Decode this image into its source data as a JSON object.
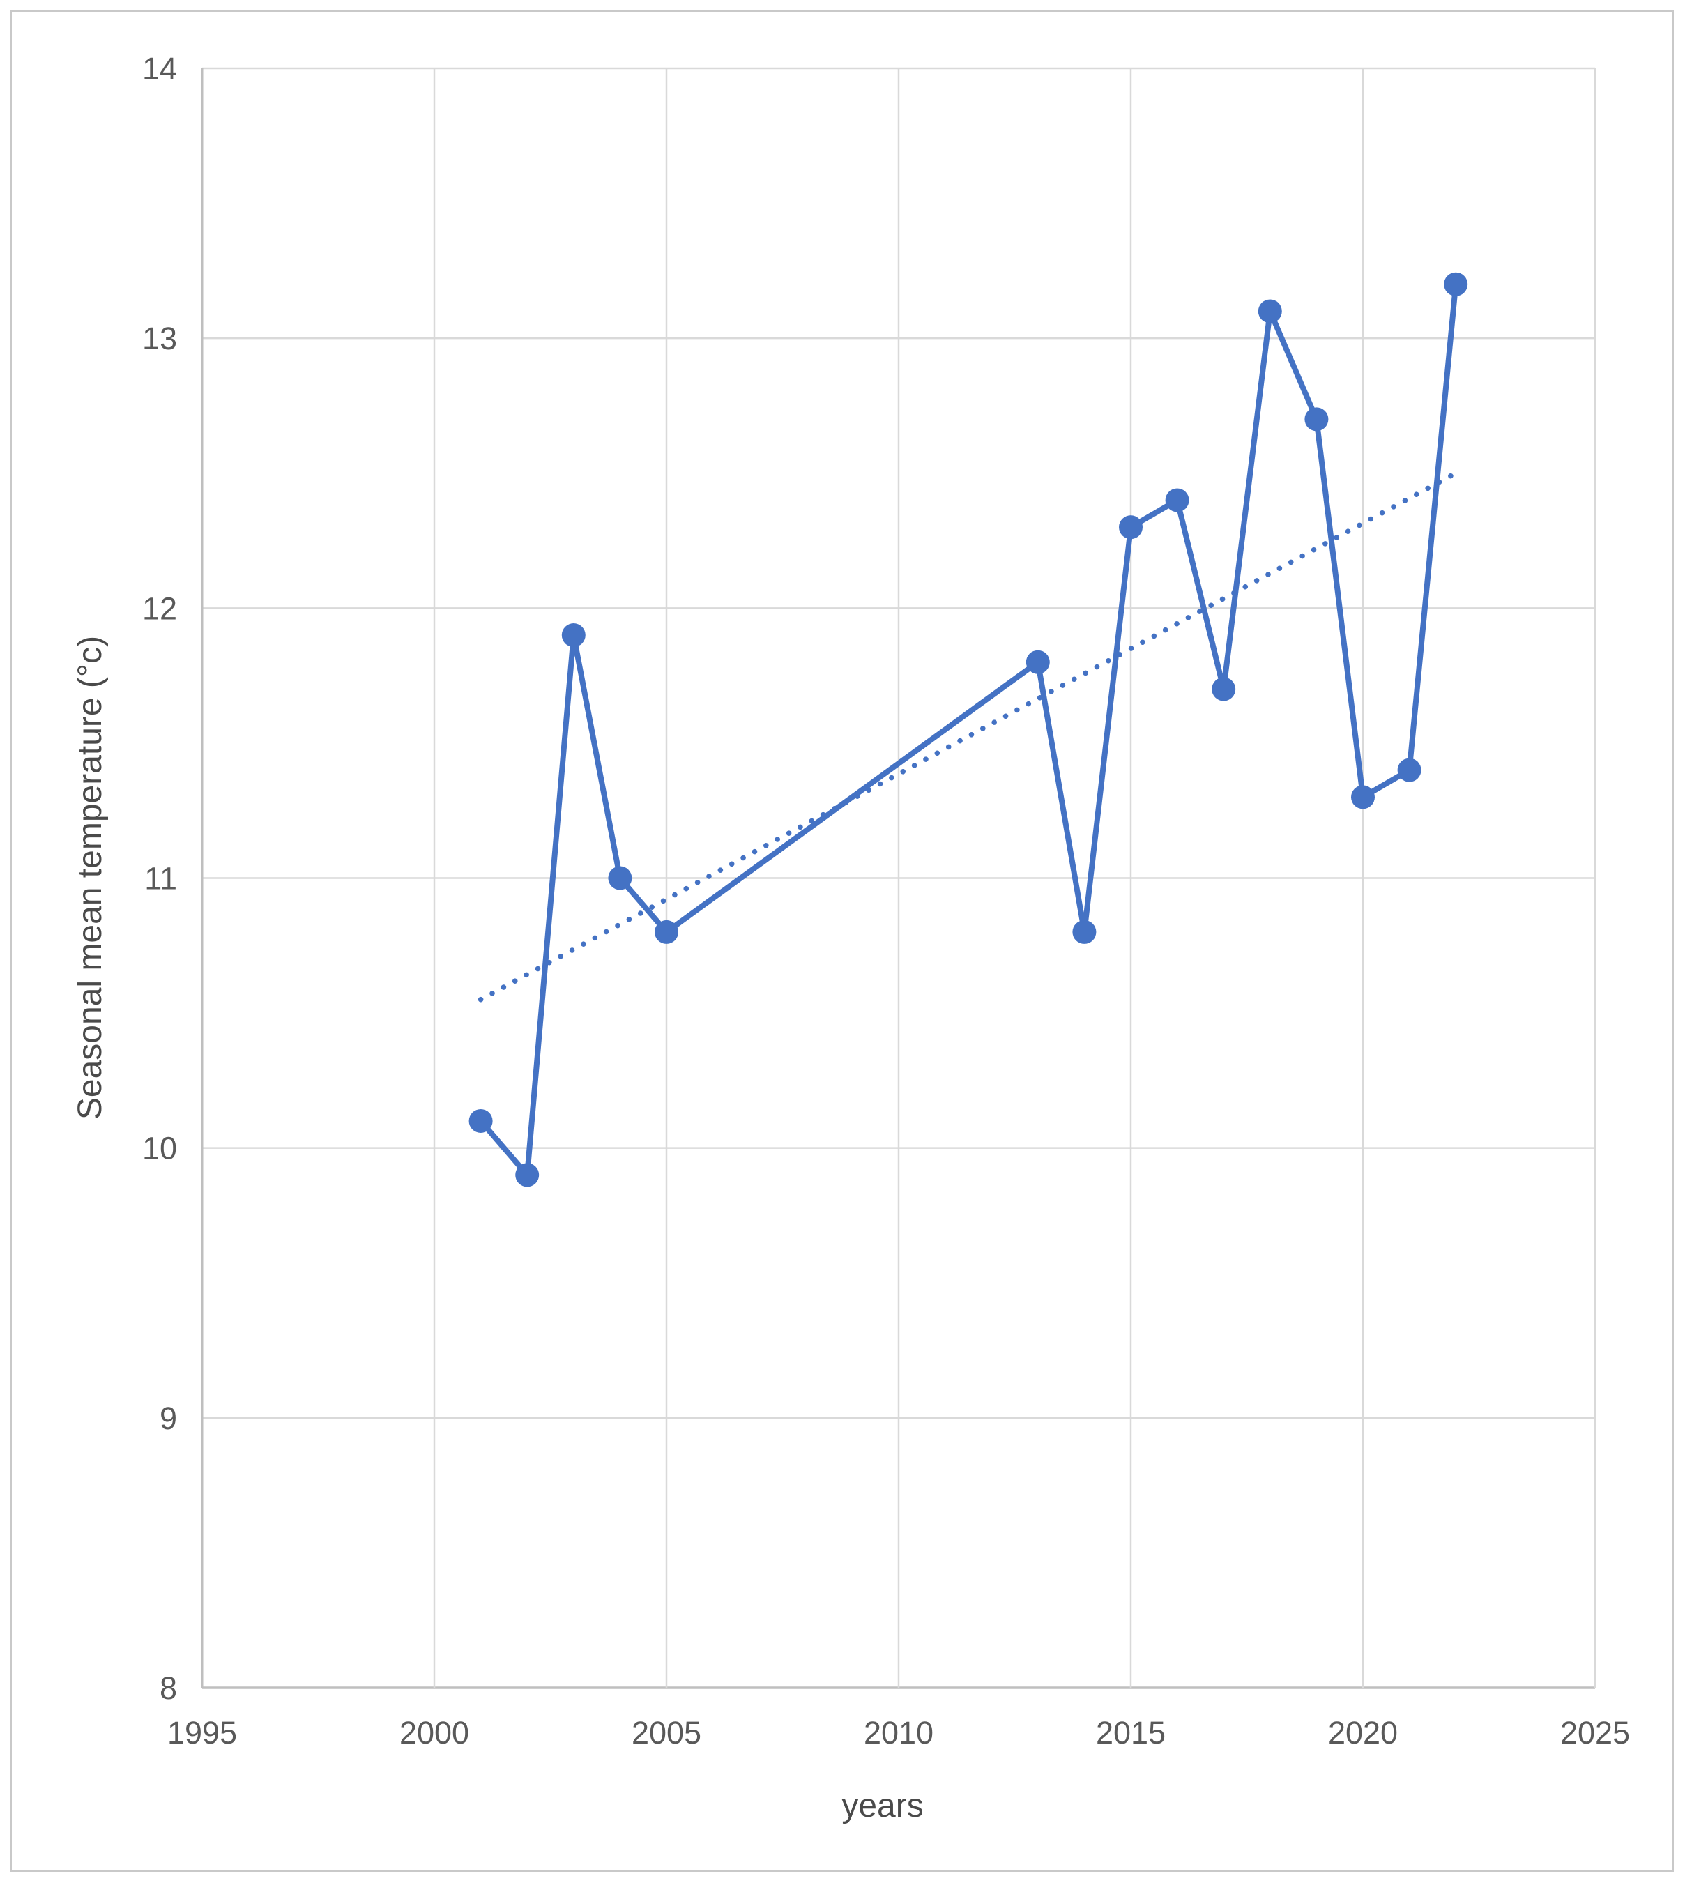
{
  "chart_data": {
    "type": "line",
    "title": "",
    "xlabel": "years",
    "ylabel": "Seasonal mean  temperature (°c)",
    "series": [
      {
        "name": "seasonal-mean-temperature",
        "points": [
          {
            "x": 2001,
            "y": 10.1
          },
          {
            "x": 2002,
            "y": 9.9
          },
          {
            "x": 2003,
            "y": 11.9
          },
          {
            "x": 2004,
            "y": 11.0
          },
          {
            "x": 2005,
            "y": 10.8
          },
          {
            "x": 2013,
            "y": 11.8
          },
          {
            "x": 2014,
            "y": 10.8
          },
          {
            "x": 2015,
            "y": 12.3
          },
          {
            "x": 2016,
            "y": 12.4
          },
          {
            "x": 2017,
            "y": 11.7
          },
          {
            "x": 2018,
            "y": 13.1
          },
          {
            "x": 2019,
            "y": 12.7
          },
          {
            "x": 2020,
            "y": 11.3
          },
          {
            "x": 2021,
            "y": 11.4
          },
          {
            "x": 2022,
            "y": 13.2
          }
        ]
      }
    ],
    "trendline": {
      "style": "dotted",
      "x1": 2001,
      "y1": 10.55,
      "x2": 2022,
      "y2": 12.5
    },
    "xlim": [
      1995,
      2025
    ],
    "ylim": [
      8,
      14
    ],
    "x_ticks": [
      "1995",
      "2000",
      "2005",
      "2010",
      "2015",
      "2020",
      "2025"
    ],
    "y_ticks": [
      "8",
      "9",
      "10",
      "11",
      "12",
      "13",
      "14"
    ],
    "grid": true,
    "legend": "none",
    "colors": {
      "series": "#4472C4",
      "gridline": "#d9d9d9",
      "axis_line": "#bfbfbf",
      "tick_label": "#595959",
      "axis_title": "#4a4a4a",
      "frame_border": "#c9c9c9",
      "background": "#ffffff"
    }
  }
}
